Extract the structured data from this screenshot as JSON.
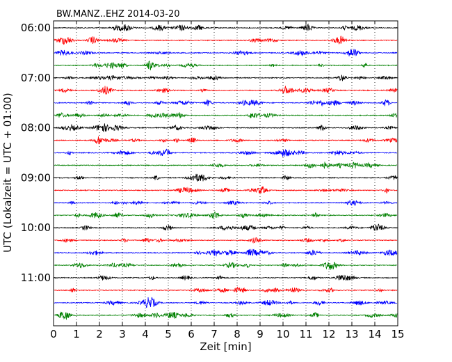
{
  "chart_data": {
    "type": "line",
    "title": "BW.MANZ..EHZ 2014-03-20",
    "xlabel": "Zeit  [min]",
    "ylabel": "UTC (Lokalzeit = UTC + 01:00)",
    "xlim": [
      0,
      15
    ],
    "x_ticks": [
      "0",
      "1",
      "2",
      "3",
      "4",
      "5",
      "6",
      "7",
      "8",
      "9",
      "10",
      "11",
      "12",
      "13",
      "14",
      "15"
    ],
    "y_ticks": [
      "06:00",
      "07:00",
      "08:00",
      "09:00",
      "10:00",
      "11:00"
    ],
    "row_interval_min": 15,
    "row_colors": [
      "#000000",
      "#ff0000",
      "#0000ff",
      "#008000"
    ],
    "rows": [
      "06:00",
      "06:15",
      "06:30",
      "06:45",
      "07:00",
      "07:15",
      "07:30",
      "07:45",
      "08:00",
      "08:15",
      "08:30",
      "08:45",
      "09:00",
      "09:15",
      "09:30",
      "09:45",
      "10:00",
      "10:15",
      "10:30",
      "10:45",
      "11:00",
      "11:15",
      "11:30",
      "11:45"
    ],
    "grid": "vertical-dotted"
  }
}
